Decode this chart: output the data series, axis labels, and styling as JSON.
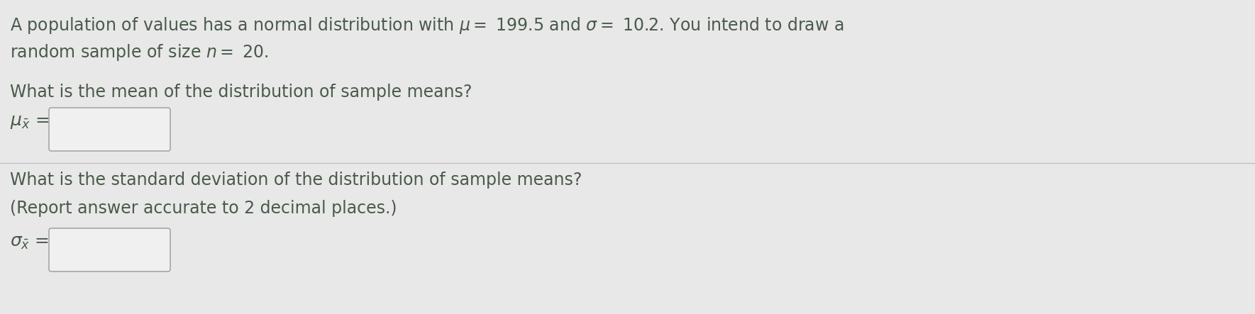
{
  "bg_color": "#e8e8e8",
  "text_color": "#4a5a4a",
  "box_facecolor": "#f0f0f0",
  "box_edgecolor": "#999999",
  "font_size_main": 17,
  "font_size_q": 17,
  "font_size_symbol": 16,
  "line1": "A population of values has a normal distribution with",
  "line1b": " = 199.5 and ",
  "line1c": " = 10.2. You intend to draw a",
  "line2a": "random sample of size ",
  "line2b": " = 20.",
  "q1_label": "What is the mean of the distribution of sample means?",
  "q2_label1": "What is the standard deviation of the distribution of sample means?",
  "q2_label2": "(Report answer accurate to 2 decimal places.)"
}
